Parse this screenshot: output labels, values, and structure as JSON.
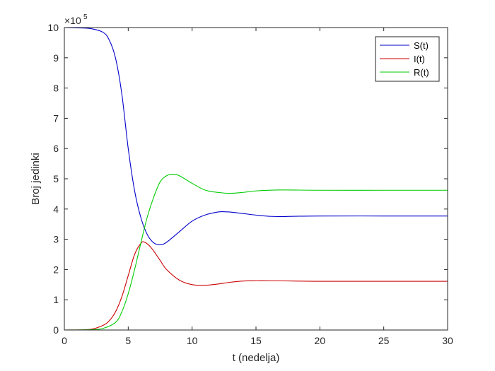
{
  "chart_data": {
    "type": "line",
    "xlabel": "t (nedelja)",
    "ylabel": "Broj jedinki",
    "exponent_base": "×10",
    "exponent_power": "5",
    "xlim": [
      0,
      30
    ],
    "ylim": [
      0,
      10
    ],
    "x_ticks": [
      0,
      5,
      10,
      15,
      20,
      25,
      30
    ],
    "y_ticks": [
      0,
      1,
      2,
      3,
      4,
      5,
      6,
      7,
      8,
      9,
      10
    ],
    "x_tick_labels": [
      "0",
      "5",
      "10",
      "15",
      "20",
      "25",
      "30"
    ],
    "y_tick_labels": [
      "0",
      "1",
      "2",
      "3",
      "4",
      "5",
      "6",
      "7",
      "8",
      "9",
      "10"
    ],
    "legend_position": "top-right",
    "grid": false,
    "series": [
      {
        "name": "S(t)",
        "color": "#0000cc",
        "points": [
          [
            0,
            10
          ],
          [
            1,
            9.99
          ],
          [
            2,
            9.97
          ],
          [
            3,
            9.85
          ],
          [
            3.5,
            9.6
          ],
          [
            4,
            9.0
          ],
          [
            4.5,
            7.8
          ],
          [
            5,
            6.0
          ],
          [
            5.5,
            4.6
          ],
          [
            6,
            3.7
          ],
          [
            6.5,
            3.15
          ],
          [
            7,
            2.88
          ],
          [
            7.5,
            2.82
          ],
          [
            8,
            2.9
          ],
          [
            9,
            3.25
          ],
          [
            10,
            3.6
          ],
          [
            11,
            3.8
          ],
          [
            12,
            3.9
          ],
          [
            12.5,
            3.91
          ],
          [
            13,
            3.9
          ],
          [
            14,
            3.85
          ],
          [
            15,
            3.8
          ],
          [
            16,
            3.76
          ],
          [
            17,
            3.75
          ],
          [
            18,
            3.76
          ],
          [
            20,
            3.77
          ],
          [
            25,
            3.77
          ],
          [
            30,
            3.77
          ]
        ]
      },
      {
        "name": "I(t)",
        "color": "#cc0000",
        "points": [
          [
            0,
            0
          ],
          [
            2,
            0.02
          ],
          [
            3,
            0.15
          ],
          [
            3.5,
            0.3
          ],
          [
            4,
            0.6
          ],
          [
            4.5,
            1.1
          ],
          [
            5,
            1.8
          ],
          [
            5.5,
            2.5
          ],
          [
            6,
            2.87
          ],
          [
            6.3,
            2.9
          ],
          [
            6.8,
            2.72
          ],
          [
            7.5,
            2.3
          ],
          [
            8,
            2.0
          ],
          [
            9,
            1.65
          ],
          [
            10,
            1.5
          ],
          [
            11,
            1.48
          ],
          [
            12,
            1.52
          ],
          [
            13,
            1.58
          ],
          [
            14,
            1.62
          ],
          [
            15,
            1.63
          ],
          [
            16,
            1.63
          ],
          [
            18,
            1.62
          ],
          [
            20,
            1.61
          ],
          [
            25,
            1.61
          ],
          [
            30,
            1.61
          ]
        ]
      },
      {
        "name": "R(t)",
        "color": "#00cc00",
        "points": [
          [
            0,
            0
          ],
          [
            2,
            0.01
          ],
          [
            3,
            0.05
          ],
          [
            4,
            0.25
          ],
          [
            4.5,
            0.6
          ],
          [
            5,
            1.2
          ],
          [
            5.5,
            2.0
          ],
          [
            6,
            2.9
          ],
          [
            6.5,
            3.75
          ],
          [
            7,
            4.4
          ],
          [
            7.5,
            4.9
          ],
          [
            8,
            5.1
          ],
          [
            8.5,
            5.15
          ],
          [
            9,
            5.1
          ],
          [
            10,
            4.85
          ],
          [
            11,
            4.63
          ],
          [
            12,
            4.55
          ],
          [
            13,
            4.52
          ],
          [
            14,
            4.55
          ],
          [
            15,
            4.6
          ],
          [
            17,
            4.63
          ],
          [
            20,
            4.62
          ],
          [
            25,
            4.62
          ],
          [
            30,
            4.62
          ]
        ]
      }
    ]
  }
}
